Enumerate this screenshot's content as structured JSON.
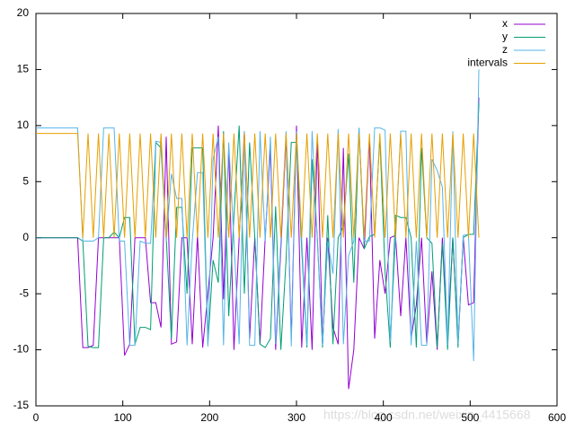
{
  "chart_data": {
    "type": "line",
    "x": [
      0,
      6,
      12,
      18,
      24,
      30,
      36,
      42,
      48,
      54,
      60,
      66,
      72,
      78,
      84,
      90,
      96,
      102,
      108,
      114,
      120,
      126,
      132,
      138,
      144,
      150,
      156,
      162,
      168,
      174,
      180,
      186,
      192,
      198,
      204,
      210,
      216,
      222,
      228,
      234,
      240,
      246,
      252,
      258,
      264,
      270,
      276,
      282,
      288,
      294,
      300,
      306,
      312,
      318,
      324,
      330,
      336,
      342,
      348,
      354,
      360,
      366,
      372,
      378,
      384,
      390,
      396,
      402,
      408,
      414,
      420,
      426,
      432,
      438,
      444,
      450,
      456,
      462,
      468,
      474,
      480,
      486,
      492,
      498,
      504,
      510
    ],
    "series": [
      {
        "name": "x",
        "color": "#9400d3",
        "values": [
          0,
          0,
          0,
          0,
          0,
          0,
          0,
          0,
          0,
          -9.8,
          -9.8,
          -9.6,
          0,
          0,
          0,
          0,
          0,
          -10.5,
          -9.5,
          0,
          0,
          0,
          -5.8,
          -5.8,
          -8,
          9,
          -9.5,
          -9.3,
          0,
          0,
          -9.5,
          0.2,
          -9.8,
          -5,
          0,
          10,
          -5.5,
          8,
          -10,
          0,
          9.5,
          -9,
          0,
          -9.5,
          0,
          8,
          -10,
          -1,
          9,
          -9,
          10,
          -9.8,
          0,
          -10,
          9,
          -9.5,
          0,
          -8,
          -9.5,
          8,
          -13.5,
          -10,
          0,
          -1,
          9,
          -9,
          -2,
          -5,
          0,
          0.2,
          -7,
          0,
          -9,
          -6,
          0,
          -9.5,
          -3,
          -10,
          0,
          -9,
          0,
          -9.5,
          0,
          -6,
          -5.8,
          12.5
        ]
      },
      {
        "name": "y",
        "color": "#009e73",
        "values": [
          0,
          0,
          0,
          0,
          0,
          0,
          0,
          0,
          0,
          -0.3,
          -9.7,
          -9.8,
          -9.8,
          0,
          0,
          0.5,
          0,
          1.8,
          1.8,
          -9.5,
          -8,
          -8,
          -8.2,
          8.5,
          8,
          0,
          -9,
          2.7,
          2.7,
          -5,
          8,
          8,
          8,
          -9.5,
          -2,
          -4,
          9.5,
          -7,
          2,
          10,
          -5,
          8.5,
          0,
          -9.5,
          -9.8,
          -9,
          2.8,
          -10,
          -2,
          8.5,
          8.5,
          -1,
          -9.8,
          7,
          0,
          -9.8,
          2,
          -9.5,
          0,
          1,
          7.5,
          -4,
          9.8,
          -1,
          0.1,
          0.3,
          9,
          -3,
          -9.8,
          2,
          1.8,
          1.8,
          0,
          -9.8,
          8,
          0,
          -0.5,
          -9.8,
          -0.5,
          -10,
          0,
          -9.8,
          0,
          0.3,
          0.3,
          12
        ]
      },
      {
        "name": "z",
        "color": "#56b4e9",
        "values": [
          9.8,
          9.8,
          9.8,
          9.8,
          9.8,
          9.8,
          9.8,
          9.8,
          9.8,
          -0.3,
          -0.3,
          -0.3,
          0,
          9.8,
          9.8,
          9.8,
          -0.3,
          -0.3,
          -9.6,
          -9.6,
          -0.3,
          -0.5,
          -0.5,
          8.6,
          8.5,
          -0.3,
          5.7,
          3.5,
          3.5,
          -9.6,
          -0.3,
          5.8,
          5.8,
          -9.7,
          7,
          9,
          -9.6,
          8.5,
          -0.3,
          -9.5,
          9.5,
          -9.6,
          -9.6,
          9.5,
          -0.3,
          9,
          -9.5,
          -0.3,
          9.5,
          -9.7,
          9.5,
          -0.2,
          -9.6,
          9.5,
          -0.3,
          -9.6,
          -0.3,
          -3.2,
          9.7,
          -9.5,
          -1.6,
          -0.3,
          9.8,
          -0.3,
          -0.3,
          9.8,
          9.8,
          9.6,
          -9.3,
          -0.3,
          9.5,
          9.5,
          -9.6,
          -0.3,
          -9.6,
          -9.6,
          7,
          6,
          4.5,
          -9.6,
          9.5,
          -9.5,
          0.2,
          0.3,
          -11,
          15
        ]
      },
      {
        "name": "intervals",
        "color": "#e69f00",
        "values": [
          9.3,
          9.3,
          9.3,
          9.3,
          9.3,
          9.3,
          9.3,
          9.3,
          9.3,
          0,
          9.3,
          0,
          9.3,
          0,
          9.3,
          0,
          9.3,
          0,
          9.3,
          0,
          9.3,
          0,
          9.3,
          0,
          9.3,
          0,
          9.3,
          0,
          9.3,
          0,
          9.3,
          0,
          9.3,
          0,
          9.3,
          0,
          9.3,
          0,
          9.3,
          0,
          9.3,
          0,
          9.3,
          0,
          9.3,
          0,
          9.3,
          0,
          9.3,
          0,
          9.3,
          0,
          9.3,
          0,
          9.3,
          0,
          9.3,
          0,
          9.3,
          0,
          9.3,
          0,
          9.3,
          0,
          9.3,
          0,
          9.3,
          0,
          9.3,
          0,
          9.3,
          0,
          9.3,
          0,
          9.3,
          0,
          9.3,
          0,
          9.3,
          0,
          9.3,
          0,
          9.3,
          0,
          9.3,
          0
        ]
      }
    ],
    "xlim": [
      0,
      600
    ],
    "xticks": [
      0,
      100,
      200,
      300,
      400,
      500,
      600
    ],
    "ylim": [
      -15,
      20
    ],
    "yticks": [
      -15,
      -10,
      -5,
      0,
      5,
      10,
      15,
      20
    ],
    "legend": "top-right",
    "watermark": "https://blog.csdn.net/weixin_4415668"
  }
}
